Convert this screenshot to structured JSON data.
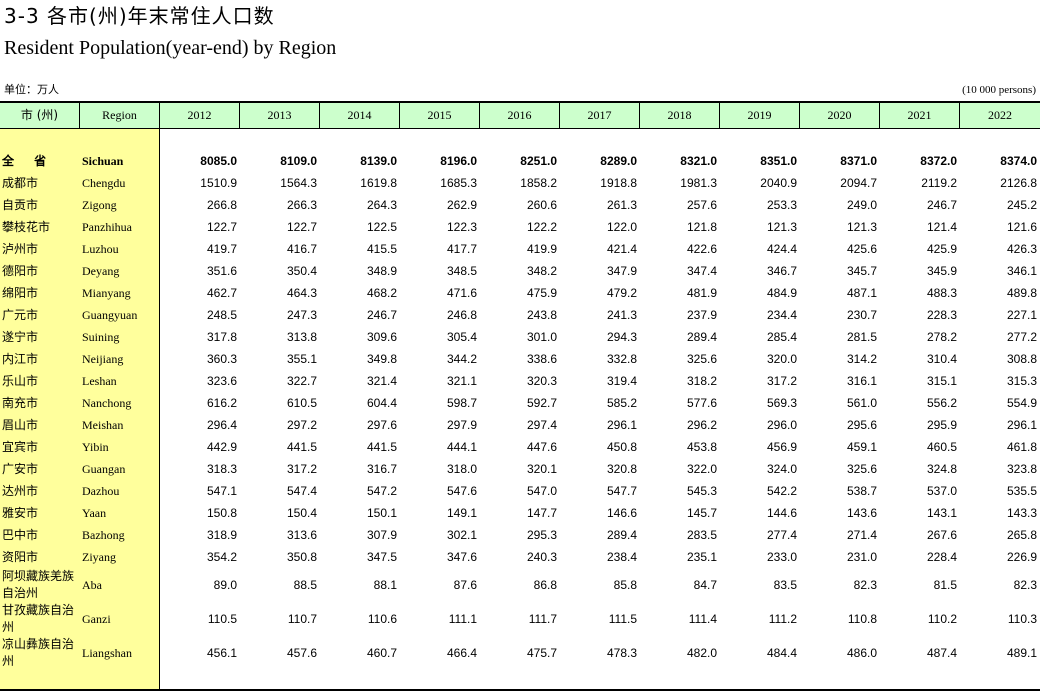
{
  "title_cn": "3-3  各市(州)年末常住人口数",
  "title_en": "Resident Population(year-end) by Region",
  "unit_cn": "单位：万人",
  "unit_en": "(10 000 persons)",
  "header": {
    "region_cn": "市 (州)",
    "region_en": "Region",
    "years": [
      "2012",
      "2013",
      "2014",
      "2015",
      "2016",
      "2017",
      "2018",
      "2019",
      "2020",
      "2021",
      "2022"
    ]
  },
  "rows": [
    {
      "cn": "全 省",
      "en": "Sichuan",
      "values": [
        "8085.0",
        "8109.0",
        "8139.0",
        "8196.0",
        "8251.0",
        "8289.0",
        "8321.0",
        "8351.0",
        "8371.0",
        "8372.0",
        "8374.0"
      ]
    },
    {
      "cn": "成都市",
      "en": "Chengdu",
      "values": [
        "1510.9",
        "1564.3",
        "1619.8",
        "1685.3",
        "1858.2",
        "1918.8",
        "1981.3",
        "2040.9",
        "2094.7",
        "2119.2",
        "2126.8"
      ]
    },
    {
      "cn": "自贡市",
      "en": "Zigong",
      "values": [
        "266.8",
        "266.3",
        "264.3",
        "262.9",
        "260.6",
        "261.3",
        "257.6",
        "253.3",
        "249.0",
        "246.7",
        "245.2"
      ]
    },
    {
      "cn": "攀枝花市",
      "en": "Panzhihua",
      "values": [
        "122.7",
        "122.7",
        "122.5",
        "122.3",
        "122.2",
        "122.0",
        "121.8",
        "121.3",
        "121.3",
        "121.4",
        "121.6"
      ]
    },
    {
      "cn": "泸州市",
      "en": "Luzhou",
      "values": [
        "419.7",
        "416.7",
        "415.5",
        "417.7",
        "419.9",
        "421.4",
        "422.6",
        "424.4",
        "425.6",
        "425.9",
        "426.3"
      ]
    },
    {
      "cn": "德阳市",
      "en": "Deyang",
      "values": [
        "351.6",
        "350.4",
        "348.9",
        "348.5",
        "348.2",
        "347.9",
        "347.4",
        "346.7",
        "345.7",
        "345.9",
        "346.1"
      ]
    },
    {
      "cn": "绵阳市",
      "en": "Mianyang",
      "values": [
        "462.7",
        "464.3",
        "468.2",
        "471.6",
        "475.9",
        "479.2",
        "481.9",
        "484.9",
        "487.1",
        "488.3",
        "489.8"
      ]
    },
    {
      "cn": "广元市",
      "en": "Guangyuan",
      "values": [
        "248.5",
        "247.3",
        "246.7",
        "246.8",
        "243.8",
        "241.3",
        "237.9",
        "234.4",
        "230.7",
        "228.3",
        "227.1"
      ]
    },
    {
      "cn": "遂宁市",
      "en": "Suining",
      "values": [
        "317.8",
        "313.8",
        "309.6",
        "305.4",
        "301.0",
        "294.3",
        "289.4",
        "285.4",
        "281.5",
        "278.2",
        "277.2"
      ]
    },
    {
      "cn": "内江市",
      "en": "Neijiang",
      "values": [
        "360.3",
        "355.1",
        "349.8",
        "344.2",
        "338.6",
        "332.8",
        "325.6",
        "320.0",
        "314.2",
        "310.4",
        "308.8"
      ]
    },
    {
      "cn": "乐山市",
      "en": "Leshan",
      "values": [
        "323.6",
        "322.7",
        "321.4",
        "321.1",
        "320.3",
        "319.4",
        "318.2",
        "317.2",
        "316.1",
        "315.1",
        "315.3"
      ]
    },
    {
      "cn": "南充市",
      "en": "Nanchong",
      "values": [
        "616.2",
        "610.5",
        "604.4",
        "598.7",
        "592.7",
        "585.2",
        "577.6",
        "569.3",
        "561.0",
        "556.2",
        "554.9"
      ]
    },
    {
      "cn": "眉山市",
      "en": "Meishan",
      "values": [
        "296.4",
        "297.2",
        "297.6",
        "297.9",
        "297.4",
        "296.1",
        "296.2",
        "296.0",
        "295.6",
        "295.9",
        "296.1"
      ]
    },
    {
      "cn": "宜宾市",
      "en": "Yibin",
      "values": [
        "442.9",
        "441.5",
        "441.5",
        "444.1",
        "447.6",
        "450.8",
        "453.8",
        "456.9",
        "459.1",
        "460.5",
        "461.8"
      ]
    },
    {
      "cn": "广安市",
      "en": "Guangan",
      "values": [
        "318.3",
        "317.2",
        "316.7",
        "318.0",
        "320.1",
        "320.8",
        "322.0",
        "324.0",
        "325.6",
        "324.8",
        "323.8"
      ]
    },
    {
      "cn": "达州市",
      "en": "Dazhou",
      "values": [
        "547.1",
        "547.4",
        "547.2",
        "547.6",
        "547.0",
        "547.7",
        "545.3",
        "542.2",
        "538.7",
        "537.0",
        "535.5"
      ]
    },
    {
      "cn": "雅安市",
      "en": "Yaan",
      "values": [
        "150.8",
        "150.4",
        "150.1",
        "149.1",
        "147.7",
        "146.6",
        "145.7",
        "144.6",
        "143.6",
        "143.1",
        "143.3"
      ]
    },
    {
      "cn": "巴中市",
      "en": "Bazhong",
      "values": [
        "318.9",
        "313.6",
        "307.9",
        "302.1",
        "295.3",
        "289.4",
        "283.5",
        "277.4",
        "271.4",
        "267.6",
        "265.8"
      ]
    },
    {
      "cn": "资阳市",
      "en": "Ziyang",
      "values": [
        "354.2",
        "350.8",
        "347.5",
        "347.6",
        "240.3",
        "238.4",
        "235.1",
        "233.0",
        "231.0",
        "228.4",
        "226.9"
      ]
    },
    {
      "cn": "阿坝藏族羌族自治州",
      "en": "Aba",
      "values": [
        "89.0",
        "88.5",
        "88.1",
        "87.6",
        "86.8",
        "85.8",
        "84.7",
        "83.5",
        "82.3",
        "81.5",
        "82.3"
      ]
    },
    {
      "cn": "甘孜藏族自治州",
      "en": "Ganzi",
      "values": [
        "110.5",
        "110.7",
        "110.6",
        "111.1",
        "111.7",
        "111.5",
        "111.4",
        "111.2",
        "110.8",
        "110.2",
        "110.3"
      ]
    },
    {
      "cn": "凉山彝族自治州",
      "en": "Liangshan",
      "values": [
        "456.1",
        "457.6",
        "460.7",
        "466.4",
        "475.7",
        "478.3",
        "482.0",
        "484.4",
        "486.0",
        "487.4",
        "489.1"
      ]
    }
  ]
}
